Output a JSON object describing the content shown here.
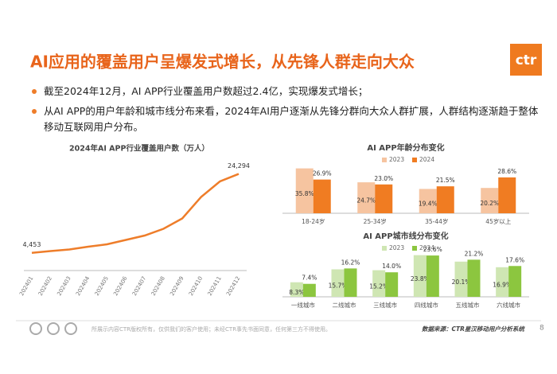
{
  "title": "AI应用的覆盖用户呈爆发式增长，从先锋人群走向大众",
  "logo": "ctr",
  "bullets": [
    "截至2024年12月，AI APP行业覆盖用户数超过2.4亿，实现爆发式增长；",
    "从AI  APP的用户年龄和城市线分布来看，2024年AI用户逐渐从先锋分群向大众人群扩展，人群结构逐渐趋于整体移动互联网用户分布。"
  ],
  "footer": {
    "copyright": "所展示内容CTR版权所有，仅供我们的客户使用；未经CTR事先书面同意，任何第三方不得使用。",
    "source": "数据来源：CTR星汉移动用户分析系统",
    "page_number": "8"
  },
  "chart_data": [
    {
      "type": "line",
      "title": "2024年AI APP行业覆盖用户数（万人）",
      "categories": [
        "202401",
        "202402",
        "202403",
        "202404",
        "202405",
        "202406",
        "202407",
        "202408",
        "202409",
        "202410",
        "202411",
        "202412"
      ],
      "values": [
        4453,
        4900,
        5300,
        6000,
        6600,
        7700,
        8800,
        10500,
        13100,
        18500,
        22400,
        24294
      ],
      "value_labels": [
        "4,453",
        null,
        null,
        null,
        null,
        null,
        null,
        null,
        null,
        null,
        null,
        "24,294"
      ],
      "color": "#ee7d2a",
      "ylim": [
        0,
        30000
      ]
    },
    {
      "type": "bar",
      "title": "AI APP年龄分布变化",
      "categories": [
        "18-24岁",
        "25-34岁",
        "35-44岁",
        "45岁以上"
      ],
      "ylim": [
        0,
        40
      ],
      "series": [
        {
          "name": "2023",
          "color": "#f6c4a0",
          "values": [
            35.8,
            24.7,
            19.4,
            20.2
          ],
          "value_labels": [
            "35.8%",
            "24.7%",
            "19.4%",
            "20.2%"
          ]
        },
        {
          "name": "2024",
          "color": "#f07c22",
          "values": [
            26.9,
            23.0,
            21.5,
            28.6
          ],
          "value_labels": [
            "26.9%",
            "23.0%",
            "21.5%",
            "28.6%"
          ]
        }
      ]
    },
    {
      "type": "bar",
      "title": "AI APP城市线分布变化",
      "categories": [
        "一线城市",
        "二线城市",
        "三线城市",
        "四线城市",
        "五线城市",
        "六线城市"
      ],
      "ylim": [
        0,
        25
      ],
      "series": [
        {
          "name": "2023",
          "color": "#cfe6b3",
          "values": [
            8.3,
            15.7,
            15.2,
            23.8,
            20.1,
            16.9
          ],
          "value_labels": [
            "8.3%",
            "15.7%",
            "15.2%",
            "23.8%",
            "20.1%",
            "16.9%"
          ]
        },
        {
          "name": "2024",
          "color": "#8cc63f",
          "values": [
            7.4,
            16.2,
            14.0,
            23.6,
            21.2,
            17.6
          ],
          "value_labels": [
            "7.4%",
            "16.2%",
            "14.0%",
            "23.6%",
            "21.2%",
            "17.6%"
          ]
        }
      ]
    }
  ]
}
